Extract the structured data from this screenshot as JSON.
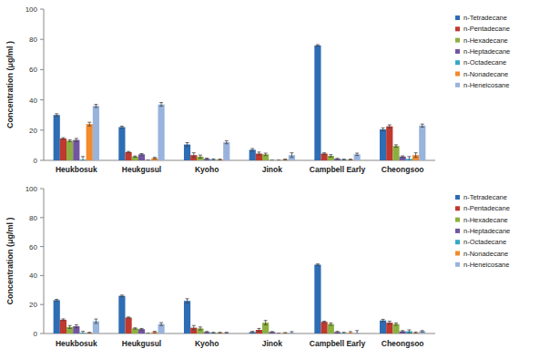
{
  "chart_data": [
    {
      "type": "bar",
      "y_label": "Concentration (μg/ml )",
      "categories": [
        "Heukbosuk",
        "Heukgusul",
        "Kyoho",
        "Jinok",
        "Campbell Early",
        "Cheongsoo"
      ],
      "ylim": [
        0,
        100
      ],
      "yticks": [
        0,
        20,
        40,
        60,
        80,
        100
      ],
      "grid": false,
      "legend": "right",
      "series": [
        {
          "name": "n-Tetradecane",
          "color": "#2e6db4",
          "values": [
            30,
            22,
            10.5,
            7,
            76,
            20.5
          ],
          "errors": [
            0.8,
            0.6,
            1.2,
            0.8,
            0.5,
            1
          ]
        },
        {
          "name": "n-Pentadecane",
          "color": "#c0392f",
          "values": [
            14.5,
            5.5,
            3.5,
            4.5,
            4.5,
            22.5
          ],
          "errors": [
            0.5,
            0.4,
            1.5,
            1,
            0.5,
            1
          ]
        },
        {
          "name": "n-Hexadecane",
          "color": "#8cb040",
          "values": [
            13,
            2.5,
            2.5,
            4,
            3,
            9.5
          ],
          "errors": [
            0.6,
            0.4,
            1,
            0.8,
            0.8,
            0.8
          ]
        },
        {
          "name": "n-Heptadecane",
          "color": "#7255a0",
          "values": [
            13.5,
            4,
            1,
            0,
            1,
            2.5
          ],
          "errors": [
            1,
            0.5,
            0.5,
            0,
            0.3,
            0.5
          ]
        },
        {
          "name": "n-Octadecane",
          "color": "#35a8c8",
          "values": [
            0.5,
            0,
            0.5,
            0,
            0.5,
            1
          ],
          "errors": [
            2,
            0,
            0.5,
            0,
            0.3,
            1.5
          ]
        },
        {
          "name": "n-Nonadecane",
          "color": "#f28a2e",
          "values": [
            24,
            1.5,
            0.5,
            0.5,
            0.5,
            3.5
          ],
          "errors": [
            1.2,
            0.5,
            0.3,
            0.3,
            0.3,
            1.5
          ]
        },
        {
          "name": "n-Heneicosane",
          "color": "#98b4dc",
          "values": [
            36,
            37,
            12,
            3.5,
            4,
            23
          ],
          "errors": [
            1,
            1.2,
            1,
            1.5,
            0.8,
            1
          ]
        }
      ]
    },
    {
      "type": "bar",
      "y_label": "Concentration (μg/ml )",
      "categories": [
        "Heukbosuk",
        "Heukgusul",
        "Kyoho",
        "Jinok",
        "Campbell Early",
        "Cheongsoo"
      ],
      "ylim": [
        0,
        100
      ],
      "yticks": [
        0,
        20,
        40,
        60,
        80,
        100
      ],
      "grid": false,
      "legend": "right",
      "series": [
        {
          "name": "n-Tetradecane",
          "color": "#2e6db4",
          "values": [
            23,
            26,
            22.5,
            1,
            47.5,
            9
          ],
          "errors": [
            0.6,
            0.5,
            1.5,
            0.5,
            0.5,
            0.8
          ]
        },
        {
          "name": "n-Pentadecane",
          "color": "#c0392f",
          "values": [
            9.5,
            11,
            4,
            2.5,
            8,
            7.5
          ],
          "errors": [
            0.6,
            0.4,
            1.5,
            1,
            0.5,
            1
          ]
        },
        {
          "name": "n-Hexadecane",
          "color": "#8cb040",
          "values": [
            4.5,
            3.5,
            3.5,
            7.5,
            6.5,
            6.5
          ],
          "errors": [
            1,
            0.4,
            1,
            1.5,
            0.8,
            0.8
          ]
        },
        {
          "name": "n-Heptadecane",
          "color": "#7255a0",
          "values": [
            5,
            3,
            1,
            1,
            1,
            1.5
          ],
          "errors": [
            1,
            0.5,
            0.4,
            0.3,
            0.5,
            0.5
          ]
        },
        {
          "name": "n-Octadecane",
          "color": "#35a8c8",
          "values": [
            0.5,
            0,
            0.5,
            0,
            0.3,
            1.5
          ],
          "errors": [
            1,
            0,
            0.3,
            0,
            0.5,
            1
          ]
        },
        {
          "name": "n-Nonadecane",
          "color": "#f28a2e",
          "values": [
            0.5,
            1,
            0.5,
            0.3,
            0.5,
            0.5
          ],
          "errors": [
            0.3,
            0.5,
            0.3,
            0.3,
            0.8,
            0.5
          ]
        },
        {
          "name": "n-Heneicosane",
          "color": "#98b4dc",
          "values": [
            8.5,
            6.5,
            0.5,
            0.5,
            0.5,
            1.5
          ],
          "errors": [
            1.5,
            1,
            0.3,
            0.8,
            1.5,
            0.5
          ]
        }
      ]
    }
  ]
}
